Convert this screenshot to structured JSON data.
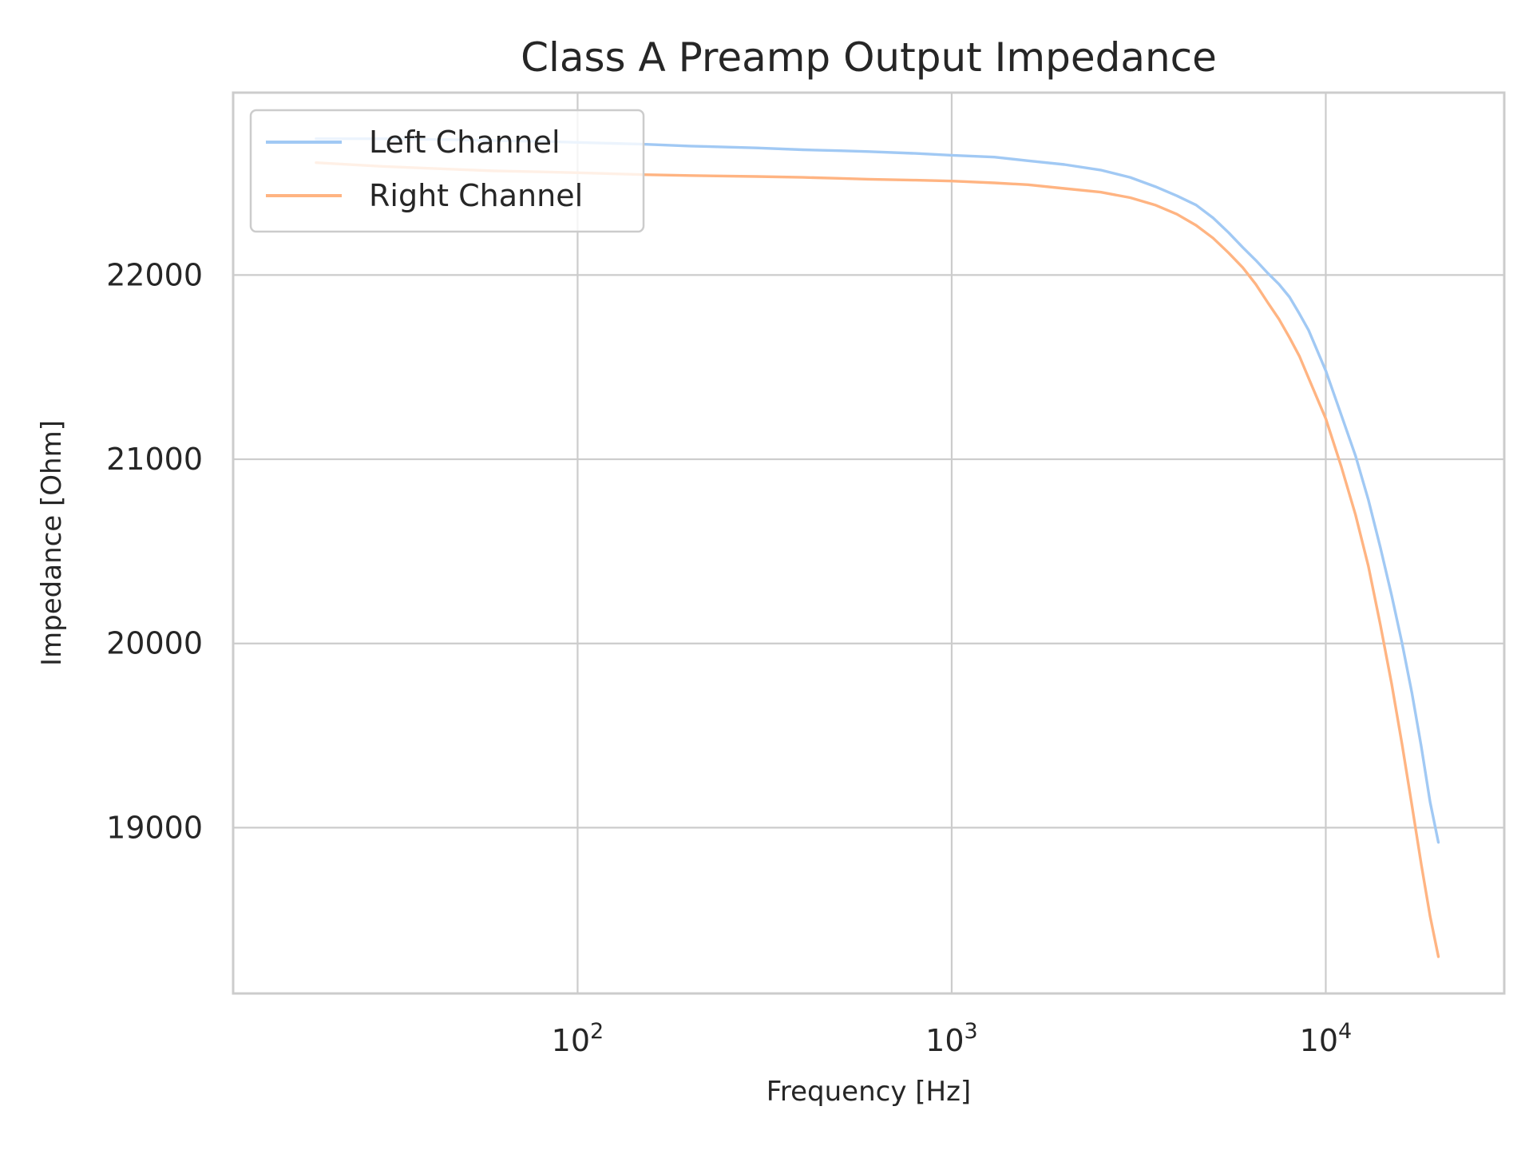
{
  "chart_data": {
    "type": "line",
    "title": "Class A Preamp Output Impedance",
    "xlabel": "Frequency [Hz]",
    "ylabel": "Impedance [Ohm]",
    "xscale": "log",
    "xlim": [
      12,
      30000
    ],
    "ylim": [
      18100,
      22990
    ],
    "xticks": [
      {
        "value": 100,
        "base": "10",
        "exp": "2"
      },
      {
        "value": 1000,
        "base": "10",
        "exp": "3"
      },
      {
        "value": 10000,
        "base": "10",
        "exp": "4"
      }
    ],
    "yticks": [
      {
        "value": 19000,
        "label": "19000"
      },
      {
        "value": 20000,
        "label": "20000"
      },
      {
        "value": 21000,
        "label": "21000"
      },
      {
        "value": 22000,
        "label": "22000"
      }
    ],
    "grid": true,
    "legend": "upper left",
    "x": [
      20,
      30,
      45,
      60,
      80,
      100,
      150,
      200,
      300,
      400,
      500,
      600,
      800,
      1000,
      1300,
      1600,
      2000,
      2500,
      3000,
      3500,
      4000,
      4500,
      5000,
      5500,
      6000,
      6500,
      7000,
      7500,
      8000,
      8500,
      9000,
      10000,
      11000,
      12000,
      13000,
      14000,
      15000,
      16000,
      17000,
      18000,
      19000,
      20000
    ],
    "series": [
      {
        "name": "Left Channel",
        "color": "#a1c9f4",
        "values": [
          22740,
          22740,
          22735,
          22730,
          22725,
          22720,
          22710,
          22700,
          22690,
          22680,
          22675,
          22670,
          22660,
          22650,
          22640,
          22620,
          22600,
          22570,
          22530,
          22480,
          22430,
          22380,
          22310,
          22230,
          22150,
          22080,
          22010,
          21950,
          21880,
          21790,
          21700,
          21480,
          21240,
          21020,
          20780,
          20520,
          20260,
          20000,
          19730,
          19440,
          19140,
          18920
        ]
      },
      {
        "name": "Right Channel",
        "color": "#ffb482",
        "values": [
          22610,
          22590,
          22575,
          22565,
          22560,
          22555,
          22545,
          22540,
          22535,
          22530,
          22525,
          22520,
          22515,
          22510,
          22500,
          22490,
          22470,
          22450,
          22420,
          22380,
          22330,
          22270,
          22200,
          22120,
          22040,
          21950,
          21850,
          21760,
          21660,
          21560,
          21440,
          21220,
          20960,
          20700,
          20420,
          20100,
          19780,
          19450,
          19120,
          18800,
          18520,
          18300
        ]
      }
    ]
  }
}
